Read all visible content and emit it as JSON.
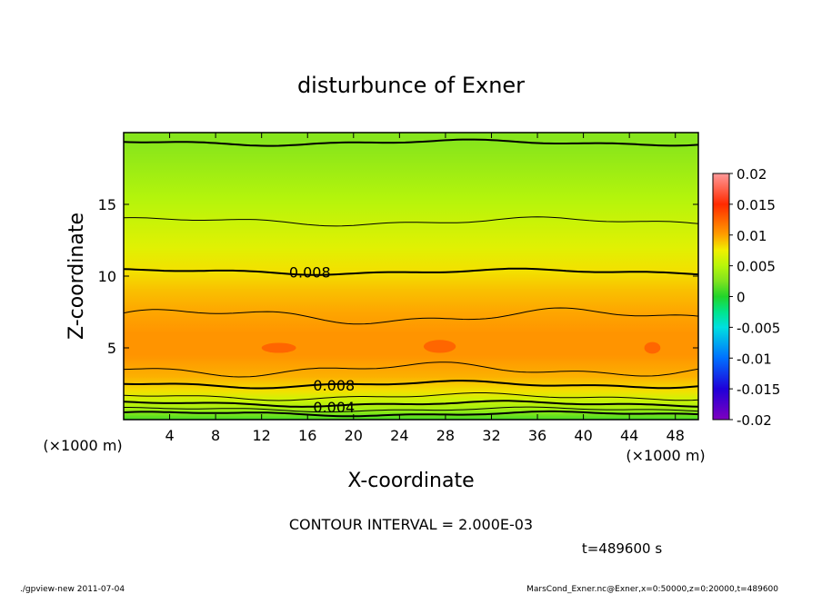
{
  "chart_data": {
    "type": "heatmap",
    "title": "disturbunce of Exner",
    "xlabel": "X-coordinate",
    "ylabel": "Z-coordinate",
    "x_unit": "(×1000 m)",
    "y_unit": "(×1000 m)",
    "xlim": [
      0,
      50
    ],
    "ylim": [
      0,
      20
    ],
    "x_ticks": [
      "4",
      "8",
      "12",
      "16",
      "20",
      "24",
      "28",
      "32",
      "36",
      "40",
      "44",
      "48"
    ],
    "y_ticks": [
      "5",
      "10",
      "15"
    ],
    "colorbar": {
      "ticks": [
        "0.02",
        "0.015",
        "0.01",
        "0.005",
        "0",
        "-0.005",
        "-0.01",
        "-0.015",
        "-0.02"
      ],
      "range": [
        -0.02,
        0.02
      ]
    },
    "contour_labels": [
      {
        "value": "0.008",
        "x": 16.2,
        "y": 10.3
      },
      {
        "value": "0.008",
        "x": 18.3,
        "y": 2.4
      },
      {
        "value": "0.004",
        "x": 18.3,
        "y": 0.9
      }
    ],
    "contour_interval_text": "CONTOUR INTERVAL = 2.000E-03",
    "time_text": "t=489600 s",
    "vertical_profile": {
      "z": [
        0.0,
        0.7,
        1.4,
        2.0,
        3.0,
        4.5,
        6.0,
        7.5,
        9.0,
        10.3,
        12.0,
        13.8,
        15.5,
        17.5,
        19.5
      ],
      "value": [
        0.001,
        0.004,
        0.006,
        0.008,
        0.0095,
        0.0105,
        0.0105,
        0.0098,
        0.009,
        0.008,
        0.0068,
        0.0058,
        0.0048,
        0.0038,
        0.0028
      ]
    }
  },
  "footer": {
    "left": "./gpview-new   2011-07-04",
    "right": "MarsCond_Exner.nc@Exner,x=0:50000,z=0:20000,t=489600"
  }
}
